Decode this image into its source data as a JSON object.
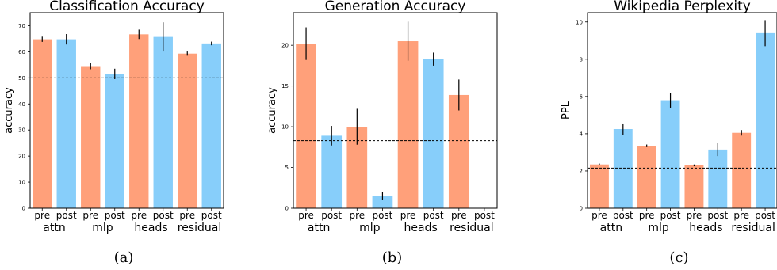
{
  "colors": {
    "pre": "#FFA07A",
    "post": "#87CEFA",
    "error_bar": "#000000",
    "baseline": "#000000"
  },
  "chart_data": [
    {
      "type": "bar",
      "title": "Classification Accuracy",
      "ylabel": "accuracy",
      "caption": "(a)",
      "ylim": [
        0,
        75
      ],
      "yticks": [
        0,
        10,
        20,
        30,
        40,
        50,
        60,
        70
      ],
      "categories": [
        "pre",
        "post",
        "pre",
        "post",
        "pre",
        "post",
        "pre",
        "post"
      ],
      "groups": [
        "attn",
        "mlp",
        "heads",
        "residual"
      ],
      "bar_colors": [
        "pre",
        "post",
        "pre",
        "post",
        "pre",
        "post",
        "pre",
        "post"
      ],
      "values": [
        64.8,
        64.8,
        54.5,
        51.5,
        66.7,
        65.7,
        59.3,
        63.2
      ],
      "errors": [
        1.0,
        2.0,
        1.2,
        2.0,
        1.8,
        5.6,
        0.8,
        0.7
      ],
      "baseline": 50.0
    },
    {
      "type": "bar",
      "title": "Generation Accuracy",
      "ylabel": "accuracy",
      "caption": "(b)",
      "ylim": [
        0,
        24
      ],
      "yticks": [
        0,
        5,
        10,
        15,
        20
      ],
      "categories": [
        "pre",
        "post",
        "pre",
        "post",
        "pre",
        "post",
        "pre",
        "post"
      ],
      "groups": [
        "attn",
        "mlp",
        "heads",
        "residual"
      ],
      "bar_colors": [
        "pre",
        "post",
        "pre",
        "post",
        "pre",
        "post",
        "pre",
        "post"
      ],
      "values": [
        20.2,
        8.9,
        10.0,
        1.5,
        20.5,
        18.3,
        13.9,
        0
      ],
      "errors": [
        2.0,
        1.2,
        2.2,
        0.5,
        2.4,
        0.8,
        1.9,
        0
      ],
      "baseline": 8.3
    },
    {
      "type": "bar",
      "title": "Wikipedia Perplexity",
      "ylabel": "PPL",
      "caption": "(c)",
      "ylim": [
        0,
        10.5
      ],
      "yticks": [
        0,
        2,
        4,
        6,
        8,
        10
      ],
      "categories": [
        "pre",
        "post",
        "pre",
        "post",
        "pre",
        "post",
        "pre",
        "post"
      ],
      "groups": [
        "attn",
        "mlp",
        "heads",
        "residual"
      ],
      "bar_colors": [
        "pre",
        "post",
        "pre",
        "post",
        "pre",
        "post",
        "pre",
        "post"
      ],
      "values": [
        2.35,
        4.25,
        3.35,
        5.8,
        2.3,
        3.15,
        4.05,
        9.4
      ],
      "errors": [
        0.05,
        0.3,
        0.07,
        0.4,
        0.05,
        0.35,
        0.15,
        0.7
      ],
      "baseline": 2.15
    }
  ]
}
